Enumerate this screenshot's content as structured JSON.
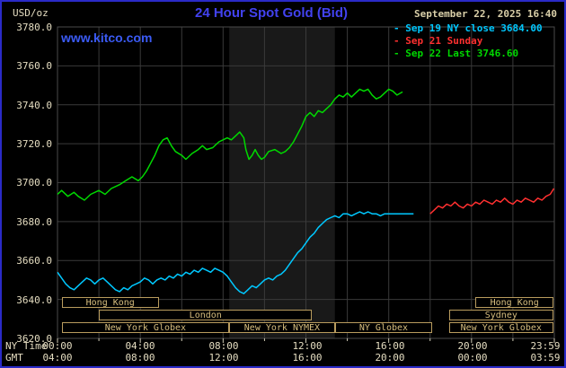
{
  "header": {
    "units_label": "USD/oz",
    "title": "24 Hour Spot Gold (Bid)",
    "datetime": "September 22, 2025 16:40",
    "watermark": "www.kitco.com",
    "legend": [
      {
        "label": "- Sep 19 NY close 3684.00",
        "color": "#00c8ff"
      },
      {
        "label": "- Sep 21 Sunday",
        "color": "#ff3030"
      },
      {
        "label": "- Sep 22 Last 3746.60",
        "color": "#00d800"
      }
    ]
  },
  "axes": {
    "row_labels": {
      "ny": "NY Time",
      "gmt": "GMT"
    },
    "y_ticks": [
      "3780.0",
      "3760.0",
      "3740.0",
      "3720.0",
      "3700.0",
      "3680.0",
      "3660.0",
      "3640.0",
      "3620.0"
    ],
    "x_ticks_ny": [
      "00:00",
      "04:00",
      "08:00",
      "12:00",
      "16:00",
      "20:00",
      "23:59"
    ],
    "x_ticks_gmt": [
      "04:00",
      "08:00",
      "12:00",
      "16:00",
      "20:00",
      "00:00",
      "03:59"
    ]
  },
  "sessions": [
    {
      "label": "Hong Kong",
      "row": 0,
      "start": 0.2,
      "end": 4.9
    },
    {
      "label": "Hong Kong",
      "row": 0,
      "start": 20.2,
      "end": 23.96
    },
    {
      "label": "London",
      "row": 1,
      "start": 2.0,
      "end": 12.3
    },
    {
      "label": "Sydney",
      "row": 1,
      "start": 18.9,
      "end": 23.96
    },
    {
      "label": "New York Globex",
      "row": 2,
      "start": 0.2,
      "end": 8.3
    },
    {
      "label": "New York NYMEX",
      "row": 2,
      "start": 8.3,
      "end": 13.4
    },
    {
      "label": "NY Globex",
      "row": 2,
      "start": 13.4,
      "end": 18.1
    },
    {
      "label": "New York Globex",
      "row": 2,
      "start": 18.9,
      "end": 23.96
    }
  ],
  "chart_data": {
    "type": "line",
    "title": "24 Hour Spot Gold (Bid)",
    "xlabel": "NY Time",
    "ylabel": "USD/oz",
    "xlim": [
      0,
      24
    ],
    "ylim": [
      3620,
      3780
    ],
    "y_tick_step": 20,
    "x_tick_step_hours": 4,
    "grid": true,
    "legend_position": "top-right",
    "nymex_band_hours": [
      8.3,
      13.4
    ],
    "band_color": "#191919",
    "grid_color": "#3a3a3a",
    "series": [
      {
        "name": "Sep 19 NY close",
        "color": "#00c8ff",
        "close_value": 3684.0,
        "points": [
          [
            0,
            3654
          ],
          [
            0.2,
            3651
          ],
          [
            0.4,
            3648
          ],
          [
            0.6,
            3646
          ],
          [
            0.8,
            3645
          ],
          [
            1,
            3647
          ],
          [
            1.2,
            3649
          ],
          [
            1.4,
            3651
          ],
          [
            1.6,
            3650
          ],
          [
            1.8,
            3648
          ],
          [
            2,
            3650
          ],
          [
            2.2,
            3651
          ],
          [
            2.4,
            3649
          ],
          [
            2.6,
            3647
          ],
          [
            2.8,
            3645
          ],
          [
            3,
            3644
          ],
          [
            3.2,
            3646
          ],
          [
            3.4,
            3645
          ],
          [
            3.6,
            3647
          ],
          [
            3.8,
            3648
          ],
          [
            4,
            3649
          ],
          [
            4.2,
            3651
          ],
          [
            4.4,
            3650
          ],
          [
            4.6,
            3648
          ],
          [
            4.8,
            3650
          ],
          [
            5,
            3651
          ],
          [
            5.2,
            3650
          ],
          [
            5.4,
            3652
          ],
          [
            5.6,
            3651
          ],
          [
            5.8,
            3653
          ],
          [
            6,
            3652
          ],
          [
            6.2,
            3654
          ],
          [
            6.4,
            3653
          ],
          [
            6.6,
            3655
          ],
          [
            6.8,
            3654
          ],
          [
            7,
            3656
          ],
          [
            7.2,
            3655
          ],
          [
            7.4,
            3654
          ],
          [
            7.6,
            3656
          ],
          [
            7.8,
            3655
          ],
          [
            8,
            3654
          ],
          [
            8.2,
            3652
          ],
          [
            8.4,
            3649
          ],
          [
            8.6,
            3646
          ],
          [
            8.8,
            3644
          ],
          [
            9,
            3643
          ],
          [
            9.2,
            3645
          ],
          [
            9.4,
            3647
          ],
          [
            9.6,
            3646
          ],
          [
            9.8,
            3648
          ],
          [
            10,
            3650
          ],
          [
            10.2,
            3651
          ],
          [
            10.4,
            3650
          ],
          [
            10.6,
            3652
          ],
          [
            10.8,
            3653
          ],
          [
            11,
            3655
          ],
          [
            11.2,
            3658
          ],
          [
            11.4,
            3661
          ],
          [
            11.6,
            3664
          ],
          [
            11.8,
            3666
          ],
          [
            12,
            3669
          ],
          [
            12.2,
            3672
          ],
          [
            12.4,
            3674
          ],
          [
            12.6,
            3677
          ],
          [
            12.8,
            3679
          ],
          [
            13,
            3681
          ],
          [
            13.2,
            3682
          ],
          [
            13.4,
            3683
          ],
          [
            13.6,
            3682
          ],
          [
            13.8,
            3684
          ],
          [
            14,
            3684
          ],
          [
            14.2,
            3683
          ],
          [
            14.4,
            3684
          ],
          [
            14.6,
            3685
          ],
          [
            14.8,
            3684
          ],
          [
            15,
            3685
          ],
          [
            15.2,
            3684
          ],
          [
            15.4,
            3684
          ],
          [
            15.6,
            3683
          ],
          [
            15.8,
            3684
          ],
          [
            16,
            3684
          ],
          [
            16.4,
            3684
          ],
          [
            16.8,
            3684
          ],
          [
            17.2,
            3684
          ]
        ]
      },
      {
        "name": "Sep 21 Sunday",
        "color": "#ff3030",
        "points": [
          [
            18,
            3684
          ],
          [
            18.2,
            3686
          ],
          [
            18.4,
            3688
          ],
          [
            18.6,
            3687
          ],
          [
            18.8,
            3689
          ],
          [
            19,
            3688
          ],
          [
            19.2,
            3690
          ],
          [
            19.4,
            3688
          ],
          [
            19.6,
            3687
          ],
          [
            19.8,
            3689
          ],
          [
            20,
            3688
          ],
          [
            20.2,
            3690
          ],
          [
            20.4,
            3689
          ],
          [
            20.6,
            3691
          ],
          [
            20.8,
            3690
          ],
          [
            21,
            3689
          ],
          [
            21.2,
            3691
          ],
          [
            21.4,
            3690
          ],
          [
            21.6,
            3692
          ],
          [
            21.8,
            3690
          ],
          [
            22,
            3689
          ],
          [
            22.2,
            3691
          ],
          [
            22.4,
            3690
          ],
          [
            22.6,
            3692
          ],
          [
            22.8,
            3691
          ],
          [
            23,
            3690
          ],
          [
            23.2,
            3692
          ],
          [
            23.4,
            3691
          ],
          [
            23.6,
            3693
          ],
          [
            23.8,
            3694
          ],
          [
            23.98,
            3697
          ]
        ]
      },
      {
        "name": "Sep 22 Last",
        "color": "#00d800",
        "last_value": 3746.6,
        "points": [
          [
            0,
            3694
          ],
          [
            0.2,
            3696
          ],
          [
            0.5,
            3693
          ],
          [
            0.8,
            3695
          ],
          [
            1,
            3693
          ],
          [
            1.3,
            3691
          ],
          [
            1.6,
            3694
          ],
          [
            2,
            3696
          ],
          [
            2.3,
            3694
          ],
          [
            2.6,
            3697
          ],
          [
            3,
            3699
          ],
          [
            3.3,
            3701
          ],
          [
            3.6,
            3703
          ],
          [
            3.9,
            3701
          ],
          [
            4.1,
            3703
          ],
          [
            4.3,
            3706
          ],
          [
            4.5,
            3710
          ],
          [
            4.7,
            3714
          ],
          [
            4.9,
            3719
          ],
          [
            5.1,
            3722
          ],
          [
            5.3,
            3723
          ],
          [
            5.5,
            3719
          ],
          [
            5.7,
            3716
          ],
          [
            6,
            3714
          ],
          [
            6.2,
            3712
          ],
          [
            6.5,
            3715
          ],
          [
            6.8,
            3717
          ],
          [
            7,
            3719
          ],
          [
            7.2,
            3717
          ],
          [
            7.5,
            3718
          ],
          [
            7.8,
            3721
          ],
          [
            8,
            3722
          ],
          [
            8.2,
            3723
          ],
          [
            8.4,
            3722
          ],
          [
            8.6,
            3724
          ],
          [
            8.8,
            3726
          ],
          [
            9,
            3723
          ],
          [
            9.1,
            3717
          ],
          [
            9.25,
            3712
          ],
          [
            9.4,
            3714
          ],
          [
            9.55,
            3717
          ],
          [
            9.7,
            3714
          ],
          [
            9.85,
            3712
          ],
          [
            10,
            3713
          ],
          [
            10.2,
            3716
          ],
          [
            10.5,
            3717
          ],
          [
            10.8,
            3715
          ],
          [
            11,
            3716
          ],
          [
            11.2,
            3718
          ],
          [
            11.4,
            3721
          ],
          [
            11.6,
            3725
          ],
          [
            11.8,
            3729
          ],
          [
            12,
            3734
          ],
          [
            12.2,
            3736
          ],
          [
            12.4,
            3734
          ],
          [
            12.6,
            3737
          ],
          [
            12.8,
            3736
          ],
          [
            13,
            3738
          ],
          [
            13.2,
            3740
          ],
          [
            13.4,
            3743
          ],
          [
            13.6,
            3745
          ],
          [
            13.8,
            3744
          ],
          [
            14,
            3746
          ],
          [
            14.2,
            3744
          ],
          [
            14.4,
            3746
          ],
          [
            14.6,
            3748
          ],
          [
            14.8,
            3747
          ],
          [
            15,
            3748
          ],
          [
            15.2,
            3745
          ],
          [
            15.4,
            3743
          ],
          [
            15.6,
            3744
          ],
          [
            15.8,
            3746
          ],
          [
            16,
            3748
          ],
          [
            16.2,
            3747
          ],
          [
            16.4,
            3745
          ],
          [
            16.67,
            3746.6
          ]
        ]
      }
    ]
  }
}
